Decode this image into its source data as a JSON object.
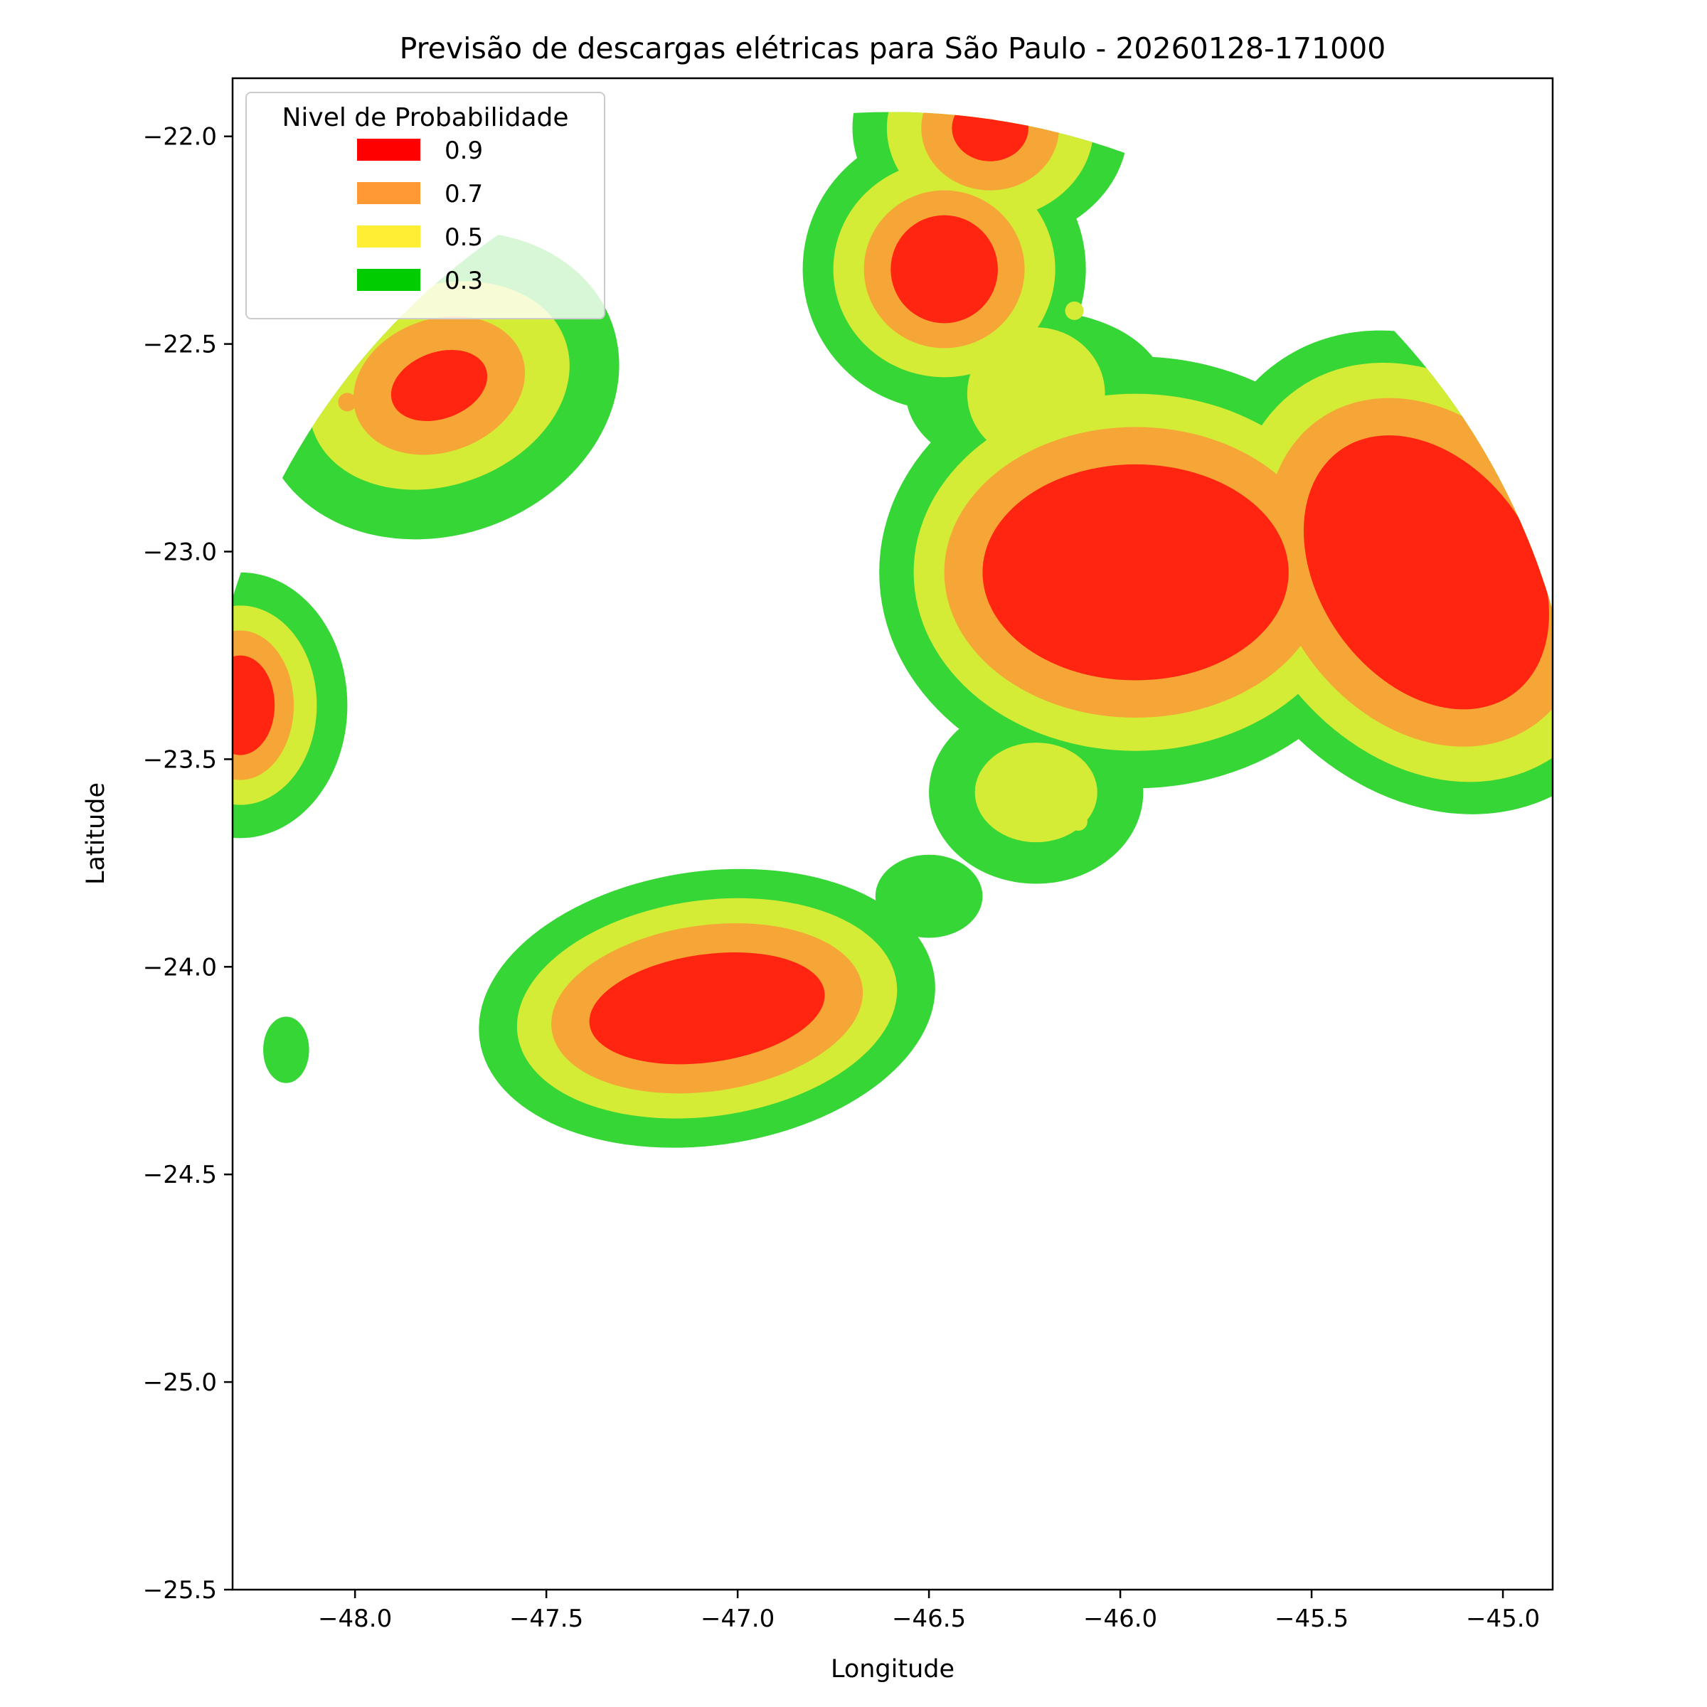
{
  "chart_data": {
    "type": "contour",
    "title": "Previsão de descargas elétricas para São Paulo - 20260128-171000",
    "xlabel": "Longitude",
    "ylabel": "Latitude",
    "xlim": [
      -48.32,
      -44.87
    ],
    "ylim": [
      -25.5,
      -21.86
    ],
    "x_ticks": [
      {
        "value": -48.0,
        "label": "−48.0"
      },
      {
        "value": -47.5,
        "label": "−47.5"
      },
      {
        "value": -47.0,
        "label": "−47.0"
      },
      {
        "value": -46.5,
        "label": "−46.5"
      },
      {
        "value": -46.0,
        "label": "−46.0"
      },
      {
        "value": -45.5,
        "label": "−45.5"
      },
      {
        "value": -45.0,
        "label": "−45.0"
      }
    ],
    "y_ticks": [
      {
        "value": -22.0,
        "label": "−22.0"
      },
      {
        "value": -22.5,
        "label": "−22.5"
      },
      {
        "value": -23.0,
        "label": "−23.0"
      },
      {
        "value": -23.5,
        "label": "−23.5"
      },
      {
        "value": -24.0,
        "label": "−24.0"
      },
      {
        "value": -24.5,
        "label": "−24.5"
      },
      {
        "value": -25.0,
        "label": "−25.0"
      },
      {
        "value": -25.5,
        "label": "−25.5"
      }
    ],
    "legend": {
      "title": "Nivel de Probabilidade",
      "placement": "top-left",
      "items": [
        {
          "label": "0.9",
          "color": "#ff0000"
        },
        {
          "label": "0.7",
          "color": "#ff9933"
        },
        {
          "label": "0.5",
          "color": "#ffee33"
        },
        {
          "label": "0.3",
          "color": "#00cc00"
        }
      ]
    },
    "level_colors": {
      "0.3": "#37d637",
      "0.5": "#d4ec36",
      "0.7": "#f6a637",
      "0.9": "#ff2510"
    },
    "cells": [
      {
        "name": "northwest",
        "center": [
          -47.78,
          -22.6
        ],
        "radii": {
          "0.9": [
            0.13,
            0.08
          ],
          "0.7": [
            0.23,
            0.16
          ],
          "0.5": [
            0.35,
            0.24
          ],
          "0.3": [
            0.48,
            0.36
          ]
        },
        "rotation": -20
      },
      {
        "name": "west-edge",
        "center": [
          -48.3,
          -23.37
        ],
        "radii": {
          "0.9": [
            0.09,
            0.12
          ],
          "0.7": [
            0.14,
            0.18
          ],
          "0.5": [
            0.2,
            0.24
          ],
          "0.3": [
            0.28,
            0.32
          ]
        },
        "rotation": 0
      },
      {
        "name": "southwest-speck",
        "center": [
          -48.18,
          -24.2
        ],
        "radii": {
          "0.3": [
            0.06,
            0.08
          ]
        },
        "rotation": 0
      },
      {
        "name": "south",
        "center": [
          -47.08,
          -24.1
        ],
        "radii": {
          "0.9": [
            0.31,
            0.13
          ],
          "0.7": [
            0.41,
            0.2
          ],
          "0.5": [
            0.5,
            0.26
          ],
          "0.3": [
            0.6,
            0.33
          ]
        },
        "rotation": -8
      },
      {
        "name": "north-small",
        "center": [
          -46.34,
          -21.98
        ],
        "radii": {
          "0.9": [
            0.1,
            0.08
          ],
          "0.7": [
            0.18,
            0.15
          ],
          "0.5": [
            0.27,
            0.22
          ],
          "0.3": [
            0.36,
            0.28
          ]
        },
        "rotation": 0
      },
      {
        "name": "north-central",
        "center": [
          -46.46,
          -22.32
        ],
        "radii": {
          "0.9": [
            0.14,
            0.13
          ],
          "0.7": [
            0.21,
            0.19
          ],
          "0.5": [
            0.29,
            0.26
          ],
          "0.3": [
            0.37,
            0.34
          ]
        },
        "rotation": 0
      },
      {
        "name": "central-large",
        "center": [
          -45.96,
          -23.05
        ],
        "radii": {
          "0.9": [
            0.4,
            0.26
          ],
          "0.7": [
            0.5,
            0.35
          ],
          "0.5": [
            0.58,
            0.43
          ],
          "0.3": [
            0.67,
            0.52
          ]
        },
        "rotation": 0
      },
      {
        "name": "east",
        "center": [
          -45.2,
          -23.05
        ],
        "radii": {
          "0.9": [
            0.28,
            0.36
          ],
          "0.7": [
            0.38,
            0.45
          ],
          "0.5": [
            0.46,
            0.54
          ],
          "0.3": [
            0.54,
            0.62
          ]
        },
        "rotation": -35
      },
      {
        "name": "bridge-north",
        "center": [
          -46.22,
          -22.62
        ],
        "radii": {
          "0.5": [
            0.18,
            0.16
          ],
          "0.3": [
            0.34,
            0.2
          ]
        },
        "rotation": 0
      },
      {
        "name": "bridge-south",
        "center": [
          -46.22,
          -23.58
        ],
        "radii": {
          "0.5": [
            0.16,
            0.12
          ],
          "0.3": [
            0.28,
            0.22
          ]
        },
        "rotation": 0
      },
      {
        "name": "bridge-southwest",
        "center": [
          -46.5,
          -23.83
        ],
        "radii": {
          "0.3": [
            0.14,
            0.1
          ]
        },
        "rotation": 0
      }
    ],
    "coverage_circle": {
      "center": [
        -46.6,
        -23.6
      ],
      "radius_deg": 1.8
    },
    "markers": [
      {
        "lon": -48.02,
        "lat": -22.64,
        "color": "#f6a637"
      },
      {
        "lon": -46.12,
        "lat": -22.42,
        "color": "#d4ec36"
      },
      {
        "lon": -46.11,
        "lat": -23.65,
        "color": "#d4ec36"
      }
    ]
  }
}
